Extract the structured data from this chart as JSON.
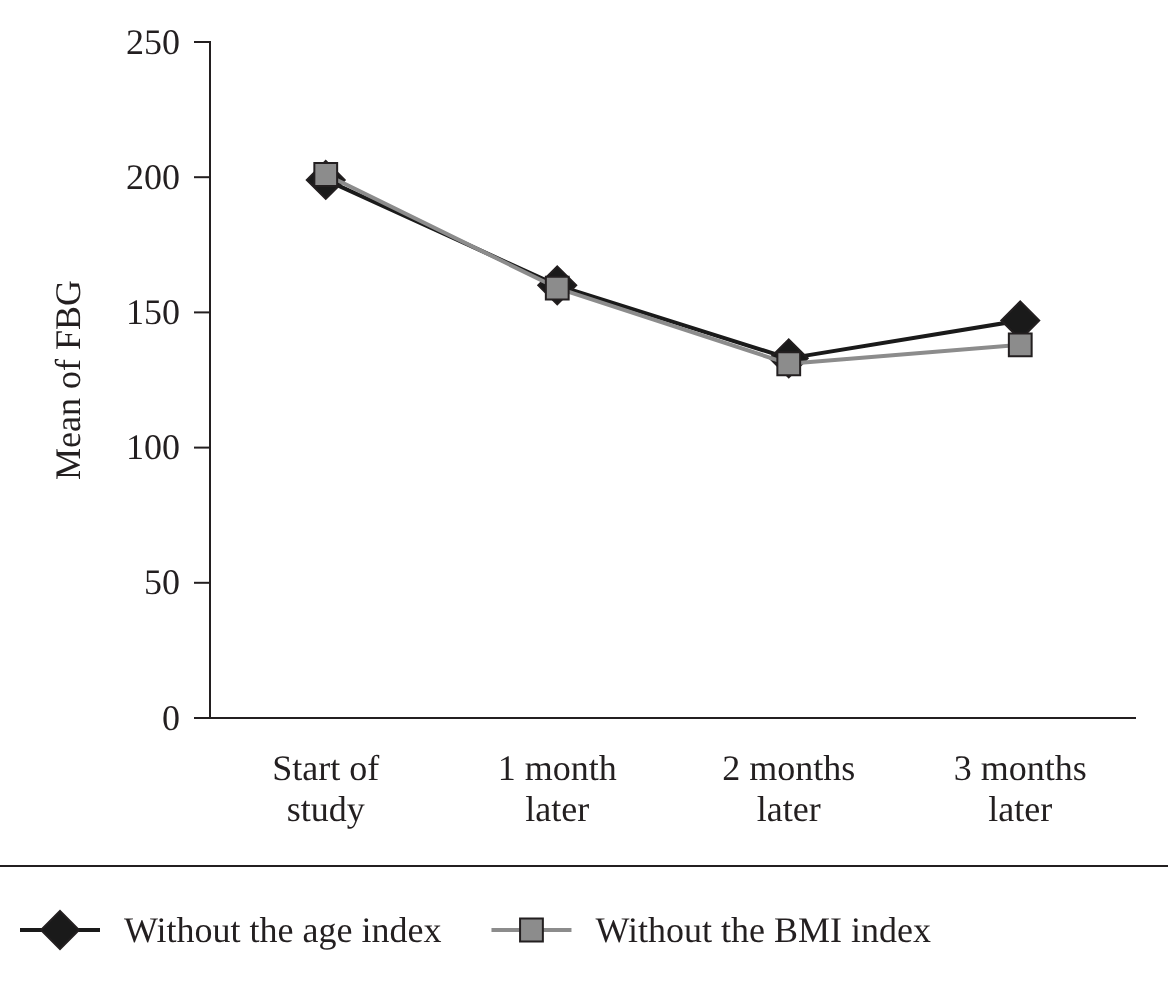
{
  "chart_data": {
    "type": "line",
    "ylabel": "Mean of FBG",
    "categories": [
      "Start of study",
      "1 month later",
      "2 months later",
      "3 months later"
    ],
    "series": [
      {
        "name": "Without the age index",
        "color": "#1a1a1a",
        "marker": "diamond",
        "values": [
          199,
          160,
          133,
          147
        ]
      },
      {
        "name": "Without the BMI index",
        "color": "#8c8c8c",
        "marker": "square",
        "values": [
          201,
          159,
          131,
          138
        ]
      }
    ],
    "ylim": [
      0,
      250
    ],
    "yticks": [
      0,
      50,
      100,
      150,
      200,
      250
    ],
    "grid": false,
    "legend": "bottom"
  }
}
